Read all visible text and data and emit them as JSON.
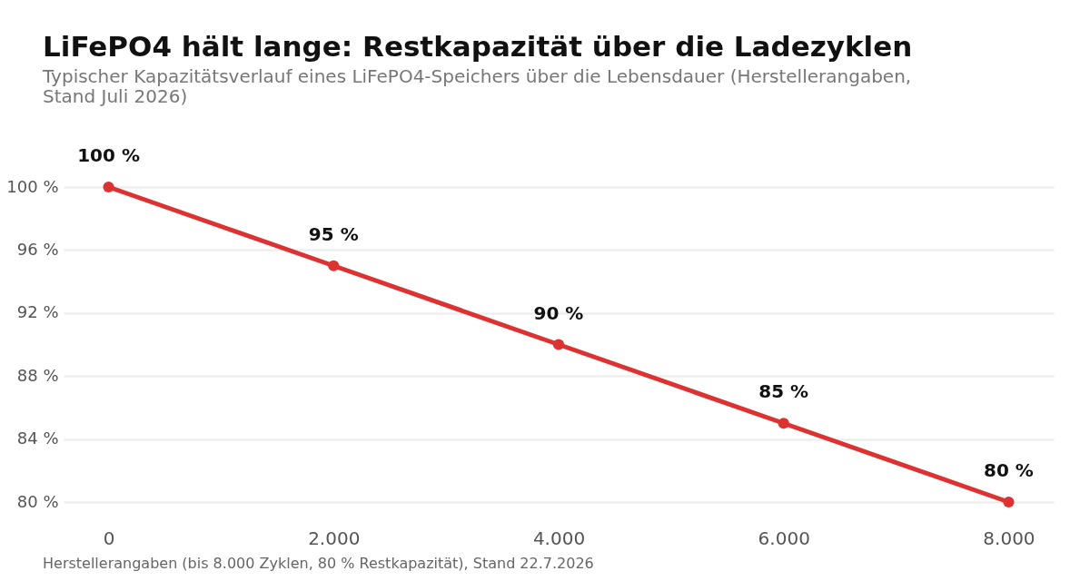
{
  "chart_data": {
    "type": "line",
    "title": "LiFePO4 hält lange: Restkapazität über die Ladezyklen",
    "subtitle": "Typischer Kapazitätsverlauf eines LiFePO4-Speichers über die Lebensdauer (Herstellerangaben, Stand Juli 2026)",
    "annotations": [
      "Herstellerangaben (bis 8.000 Zyklen, 80 % Restkapazität), Stand 22.7.2026"
    ],
    "x": [
      0,
      2000,
      4000,
      6000,
      8000
    ],
    "series": [
      {
        "color": "#de3232",
        "values": [
          100,
          95,
          90,
          85,
          80
        ],
        "value_labels": [
          "100 %",
          "95 %",
          "90 %",
          "85 %",
          "80 %"
        ]
      }
    ],
    "xlim": [
      -400,
      8400
    ],
    "ylim": [
      80,
      100
    ],
    "xticks": [
      {
        "value": 0,
        "label": "0"
      },
      {
        "value": 2000,
        "label": "2.000"
      },
      {
        "value": 4000,
        "label": "4.000"
      },
      {
        "value": 6000,
        "label": "6.000"
      },
      {
        "value": 8000,
        "label": "8.000"
      }
    ],
    "yticks": [
      {
        "value": 80,
        "label": "80 %"
      },
      {
        "value": 84,
        "label": "84 %"
      },
      {
        "value": 88,
        "label": "88 %"
      },
      {
        "value": 92,
        "label": "92 %"
      },
      {
        "value": 96,
        "label": "96 %"
      },
      {
        "value": 100,
        "label": "100 %"
      }
    ],
    "grid": "y",
    "marker": "circle",
    "line_style": "solid"
  }
}
